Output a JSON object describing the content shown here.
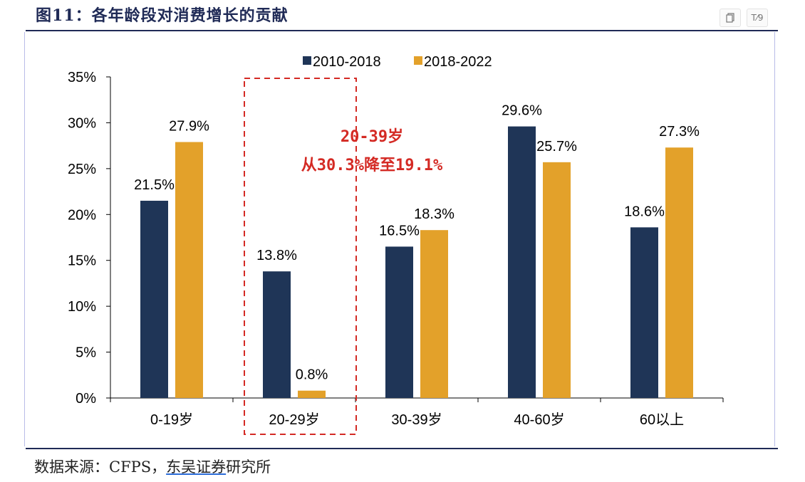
{
  "figure": {
    "title": "图11：各年龄段对消费增长的贡献",
    "source_prefix": "数据来源：CFPS，",
    "source_link": "东吴证券",
    "source_suffix": "研究所"
  },
  "toolbar": {
    "copy_icon": "copy-icon",
    "ocr_icon": "text-recognize-icon",
    "ocr_label": "T⁄9"
  },
  "colors": {
    "series1": "#1f3557",
    "series2": "#e3a12a",
    "highlight": "#d42a24",
    "axis": "#000000"
  },
  "annotation": {
    "line1": "20-39岁",
    "line2": "从30.3%降至19.1%",
    "highlight_category": "20-29岁"
  },
  "chart_data": {
    "type": "bar",
    "title": "",
    "xlabel": "",
    "ylabel": "",
    "categories": [
      "0-19岁",
      "20-29岁",
      "30-39岁",
      "40-60岁",
      "60以上"
    ],
    "series": [
      {
        "name": "2010-2018",
        "values": [
          21.5,
          13.8,
          16.5,
          29.6,
          18.6
        ],
        "labels": [
          "21.5%",
          "13.8%",
          "16.5%",
          "29.6%",
          "18.6%"
        ]
      },
      {
        "name": "2018-2022",
        "values": [
          27.9,
          0.8,
          18.3,
          25.7,
          27.3
        ],
        "labels": [
          "27.9%",
          "0.8%",
          "18.3%",
          "25.7%",
          "27.3%"
        ]
      }
    ],
    "ylim": [
      0,
      35
    ],
    "yticks": [
      0,
      5,
      10,
      15,
      20,
      25,
      30,
      35
    ],
    "ytick_labels": [
      "0%",
      "5%",
      "10%",
      "15%",
      "20%",
      "25%",
      "30%",
      "35%"
    ],
    "legend_position": "top",
    "grid": false
  }
}
